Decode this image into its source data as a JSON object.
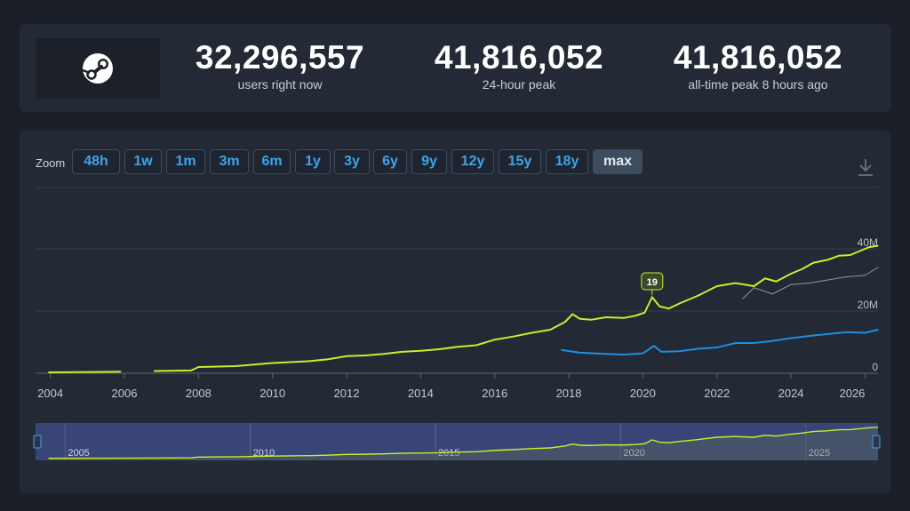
{
  "stats": [
    {
      "value": "32,296,557",
      "label": "users right now"
    },
    {
      "value": "41,816,052",
      "label": "24-hour peak"
    },
    {
      "value": "41,816,052",
      "label": "all-time peak 8 hours ago"
    }
  ],
  "logo_icon": "steam-logo-icon",
  "toolbar": {
    "zoom_label": "Zoom",
    "buttons": [
      "48h",
      "1w",
      "1m",
      "3m",
      "6m",
      "1y",
      "3y",
      "6y",
      "9y",
      "12y",
      "15y",
      "18y"
    ],
    "active_button": "max",
    "download_icon": "download-icon"
  },
  "colors": {
    "users": "#c5f02b",
    "in_game": "#1f8ee0",
    "previous_year": "#8f949a",
    "accent": "#3fa3ea"
  },
  "chart_data": {
    "type": "line",
    "x_ticks": [
      "2004",
      "2006",
      "2008",
      "2010",
      "2012",
      "2014",
      "2016",
      "2018",
      "2020",
      "2022",
      "2024",
      "2026"
    ],
    "y_ticks": [
      "0",
      "20M",
      "40M"
    ],
    "xlim": [
      2003.6,
      2026.35
    ],
    "ylim": [
      0,
      40000000
    ],
    "grid": true,
    "annotation": {
      "label": "19",
      "x": 2020.25,
      "y": 24500000
    },
    "navigator_ticks": [
      "2005",
      "2010",
      "2015",
      "2020",
      "2025"
    ],
    "series": [
      {
        "x": [
          2003.95,
          2005.9,
          2006.8,
          2007.8,
          2008.0,
          2009.0,
          2010.0,
          2011.0,
          2011.5,
          2012.0,
          2012.5,
          2013.0,
          2013.5,
          2014.0,
          2014.5,
          2015.0,
          2015.5,
          2016.0,
          2016.5,
          2017.0,
          2017.5,
          2017.9,
          2018.1,
          2018.3,
          2018.6,
          2019.0,
          2019.5,
          2019.8,
          2020.05,
          2020.25,
          2020.45,
          2020.7,
          2021.0,
          2021.5,
          2022.0,
          2022.5,
          2023.0,
          2023.3,
          2023.6,
          2024.0,
          2024.3,
          2024.6,
          2025.0,
          2025.3,
          2025.6,
          2025.9,
          2026.1,
          2026.35
        ],
        "y": [
          300000,
          500000,
          700000,
          900000,
          2000000,
          2300000,
          3300000,
          3900000,
          4500000,
          5500000,
          5700000,
          6200000,
          6900000,
          7200000,
          7700000,
          8500000,
          9000000,
          10800000,
          11800000,
          13000000,
          14000000,
          16500000,
          19000000,
          17500000,
          17200000,
          18000000,
          17800000,
          18500000,
          19500000,
          24500000,
          21500000,
          20800000,
          22500000,
          25000000,
          28000000,
          29000000,
          28000000,
          30500000,
          29500000,
          32000000,
          33500000,
          35500000,
          36500000,
          37800000,
          38000000,
          39500000,
          40500000,
          41000000
        ]
      },
      {
        "x": [
          2017.8,
          2018.3,
          2019.0,
          2019.5,
          2020.0,
          2020.3,
          2020.5,
          2021.0,
          2021.5,
          2022.0,
          2022.5,
          2023.0,
          2023.5,
          2024.0,
          2024.5,
          2025.0,
          2025.5,
          2026.0,
          2026.35
        ],
        "y": [
          7500000,
          6600000,
          6200000,
          6000000,
          6400000,
          8800000,
          6900000,
          7100000,
          7900000,
          8300000,
          9700000,
          9700000,
          10400000,
          11300000,
          12000000,
          12600000,
          13200000,
          13000000,
          14000000
        ]
      },
      {
        "x": [
          2022.7,
          2023.0,
          2023.5,
          2024.0,
          2024.5,
          2025.0,
          2025.5,
          2026.0,
          2026.35
        ],
        "y": [
          24000000,
          27500000,
          25500000,
          28500000,
          29000000,
          30000000,
          31000000,
          31500000,
          34000000
        ]
      }
    ]
  }
}
